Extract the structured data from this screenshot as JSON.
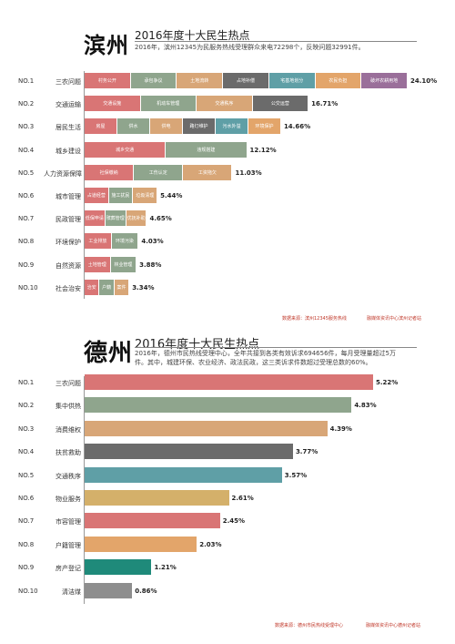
{
  "chart_data": [
    {
      "type": "bar",
      "city": "滨州",
      "title": "2016年度十大民生热点",
      "subtitle": "2016年，滨州12345为民服务热线受理群众来电72298个，反映问题32991件。",
      "source": "数据来源：滨州12345服务热线",
      "credit": "融媒体资讯中心滨州记者站",
      "ranks": [
        "NO.1",
        "NO.2",
        "NO.3",
        "NO.4",
        "NO.5",
        "NO.6",
        "NO.7",
        "NO.8",
        "NO.9",
        "NO.10"
      ],
      "categories": [
        "三农问题",
        "交通运输",
        "居民生活",
        "城乡建设",
        "人力资源保障",
        "城市管理",
        "民政管理",
        "环境保护",
        "自然资源",
        "社会治安"
      ],
      "values": [
        24.1,
        16.71,
        14.66,
        12.12,
        11.03,
        5.44,
        4.65,
        4.03,
        3.88,
        3.34
      ],
      "value_labels": [
        "24.10%",
        "16.71%",
        "14.66%",
        "12.12%",
        "11.03%",
        "5.44%",
        "4.65%",
        "4.03%",
        "3.88%",
        "3.34%"
      ],
      "segments": [
        [
          {
            "label": "村务公开",
            "color": "#d97575"
          },
          {
            "label": "承包争议",
            "color": "#8fa58d"
          },
          {
            "label": "土地流转",
            "color": "#d8a677"
          },
          {
            "label": "占地补偿",
            "color": "#6b6b6b"
          },
          {
            "label": "宅基地划分",
            "color": "#5f9fa6"
          },
          {
            "label": "农民负担",
            "color": "#e3a56a"
          },
          {
            "label": "破坏农耕用地",
            "color": "#9a6f9a"
          }
        ],
        [
          {
            "label": "交通设施",
            "color": "#d97575"
          },
          {
            "label": "机动车管理",
            "color": "#8fa58d"
          },
          {
            "label": "交通秩序",
            "color": "#d8a677"
          },
          {
            "label": "公交运营",
            "color": "#6b6b6b"
          }
        ],
        [
          {
            "label": "房屋",
            "color": "#d97575"
          },
          {
            "label": "供水",
            "color": "#8fa58d"
          },
          {
            "label": "供电",
            "color": "#d8a677"
          },
          {
            "label": "路灯维护",
            "color": "#6b6b6b"
          },
          {
            "label": "污水外溢",
            "color": "#5f9fa6"
          },
          {
            "label": "环境保护",
            "color": "#e3a56a"
          }
        ],
        [
          {
            "label": "城乡交通",
            "color": "#d97575"
          },
          {
            "label": "违规搭建",
            "color": "#8fa58d"
          }
        ],
        [
          {
            "label": "社保缴纳",
            "color": "#d97575"
          },
          {
            "label": "工伤认定",
            "color": "#8fa58d"
          },
          {
            "label": "工资拖欠",
            "color": "#d8a677"
          }
        ],
        [
          {
            "label": "占道经营",
            "color": "#d97575"
          },
          {
            "label": "施工扰民",
            "color": "#8fa58d"
          },
          {
            "label": "垃圾清理",
            "color": "#d8a677"
          }
        ],
        [
          {
            "label": "低保申请",
            "color": "#d97575"
          },
          {
            "label": "殡葬管理",
            "color": "#8fa58d"
          },
          {
            "label": "优抚补助",
            "color": "#d8a677"
          }
        ],
        [
          {
            "label": "工业排放",
            "color": "#d97575"
          },
          {
            "label": "环境污染",
            "color": "#8fa58d"
          }
        ],
        [
          {
            "label": "土地管理",
            "color": "#d97575"
          },
          {
            "label": "林业管理",
            "color": "#8fa58d"
          }
        ],
        [
          {
            "label": "治安",
            "color": "#d97575"
          },
          {
            "label": "户籍",
            "color": "#8fa58d"
          },
          {
            "label": "案件",
            "color": "#d8a677"
          }
        ]
      ]
    },
    {
      "type": "bar",
      "city": "德州",
      "title": "2016年度十大民生热点",
      "subtitle": "2016年，德州市民热线受理中心，全年共接到各类有效诉求694656件，每月受理量超过5万件。其中，城建环保、农业经济、政法民政，这三类诉求件数超过受理总数的60%。",
      "source": "数据来源：德州市民热线受理中心",
      "credit": "融媒体资讯中心德州记者站",
      "ranks": [
        "NO.1",
        "NO.2",
        "NO.3",
        "NO.4",
        "NO.5",
        "NO.6",
        "NO.7",
        "NO.8",
        "NO.9",
        "NO.10"
      ],
      "categories": [
        "三农问题",
        "集中供热",
        "消费维权",
        "扶贫救助",
        "交通秩序",
        "物业服务",
        "市容管理",
        "户籍管理",
        "房产登记",
        "清洁煤"
      ],
      "values": [
        5.22,
        4.83,
        4.39,
        3.77,
        3.57,
        2.61,
        2.45,
        2.03,
        1.21,
        0.86
      ],
      "value_labels": [
        "5.22%",
        "4.83%",
        "4.39%",
        "3.77%",
        "3.57%",
        "2.61%",
        "2.45%",
        "2.03%",
        "1.21%",
        "0.86%"
      ],
      "colors": [
        "#d97575",
        "#8fa58d",
        "#d8a677",
        "#6b6b6b",
        "#5f9fa6",
        "#d4b06a",
        "#d97575",
        "#e3a56a",
        "#1f8a7a",
        "#8e8e8e"
      ]
    }
  ]
}
